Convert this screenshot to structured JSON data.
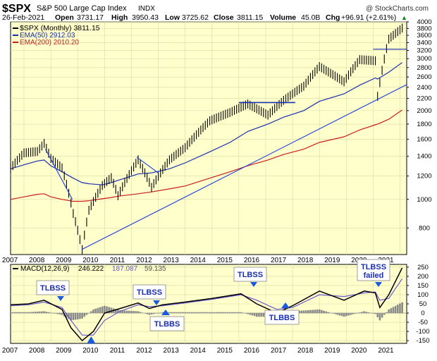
{
  "header": {
    "symbol": "$SPX",
    "name": "S&P 500 Large Cap Index",
    "exchange": "INDX",
    "watermark": "@ StockCharts.com",
    "date": "26-Feb-2021",
    "open_label": "Open",
    "open": "3731.17",
    "high_label": "High",
    "high": "3950.43",
    "low_label": "Low",
    "low": "3725.62",
    "close_label": "Close",
    "close": "3811.15",
    "volume_label": "Volume",
    "volume": "45.0B",
    "chg_label": "Chg",
    "chg": "+96.91 (+2.61%)",
    "chg_arrow": "▲"
  },
  "price_legend": [
    {
      "text": "$SPX (Monthly) 3811.15",
      "color": "#000000"
    },
    {
      "text": "EMA(50) 2912.03",
      "color": "#1a2fb0"
    },
    {
      "text": "EMA(200) 2010.20",
      "color": "#c81e1e"
    }
  ],
  "macd_legend": {
    "label": "MACD(12,26,9)",
    "values": [
      "246.222",
      "187.087",
      "59.135"
    ]
  },
  "colors": {
    "panel_bg": "#ffffcc",
    "price": "#000000",
    "ema50": "#1a2fb0",
    "ema200": "#c81e1e",
    "trendline": "#1a3be0",
    "macd": "#000000",
    "signal": "#6a5acd",
    "hist": "#8a8a8a",
    "annotation": "#1a2fb0",
    "arrow": "#1a5ae0"
  },
  "annotations": [
    {
      "text": "TLBSS",
      "arrow": "down"
    },
    {
      "text": "TLBSS",
      "arrow": "down"
    },
    {
      "text": "TLBBS",
      "arrow": "up"
    },
    {
      "text": "TLBSS",
      "arrow": "down"
    },
    {
      "text": "TLBBS",
      "arrow": "up"
    },
    {
      "text": "TLBSS failed",
      "arrow": "down"
    }
  ],
  "chart_data": [
    {
      "type": "line",
      "title": "$SPX S&P 500 Large Cap Index INDX",
      "x": [
        "2006-07",
        "2007-01",
        "2007-07",
        "2007-10",
        "2008-01",
        "2008-06",
        "2008-11",
        "2009-03",
        "2009-06",
        "2009-12",
        "2010-04",
        "2010-07",
        "2011-04",
        "2011-10",
        "2012-06",
        "2013-01",
        "2013-12",
        "2014-09",
        "2015-05",
        "2016-02",
        "2016-09",
        "2017-06",
        "2018-01",
        "2018-12",
        "2019-07",
        "2020-02",
        "2020-03",
        "2020-08",
        "2021-02"
      ],
      "x_tick_labels": [
        "2007",
        "2008",
        "2009",
        "2010",
        "2011",
        "2012",
        "2013",
        "2014",
        "2015",
        "2016",
        "2017",
        "2018",
        "2019",
        "2020",
        "2021"
      ],
      "y_scale": "log",
      "y_ticks": [
        800,
        1000,
        1200,
        1400,
        1600,
        1800,
        2000,
        2200,
        2400,
        2600,
        2800,
        3000,
        3200,
        3400,
        3600,
        3800,
        4000
      ],
      "ylim": [
        650,
        4000
      ],
      "series": [
        {
          "name": "$SPX (Monthly)",
          "values": [
            1276,
            1438,
            1455,
            1549,
            1378,
            1280,
            896,
            676,
            919,
            1115,
            1186,
            1030,
            1363,
            1099,
            1362,
            1498,
            1848,
            1972,
            2107,
            1932,
            2168,
            2423,
            2823,
            2506,
            2980,
            2954,
            2237,
            3500,
            3811
          ]
        },
        {
          "name": "EMA(50)",
          "values": [
            1270,
            1310,
            1350,
            1360,
            1300,
            1240,
            1180,
            1140,
            1130,
            1120,
            1140,
            1160,
            1220,
            1230,
            1270,
            1330,
            1450,
            1560,
            1700,
            1800,
            1900,
            2000,
            2150,
            2280,
            2440,
            2580,
            2560,
            2700,
            2912
          ]
        },
        {
          "name": "EMA(200)",
          "values": [
            1000,
            1020,
            1040,
            1045,
            1020,
            1000,
            985,
            985,
            990,
            1005,
            1015,
            1025,
            1045,
            1060,
            1085,
            1110,
            1180,
            1240,
            1300,
            1360,
            1420,
            1480,
            1560,
            1630,
            1720,
            1790,
            1800,
            1870,
            2010
          ]
        }
      ]
    },
    {
      "type": "line",
      "title": "MACD(12,26,9) 246.222, 187.087, 59.135",
      "x": [
        "2006-07",
        "2007-03",
        "2007-10",
        "2008-06",
        "2008-10",
        "2009-03",
        "2009-08",
        "2010-01",
        "2010-08",
        "2011-04",
        "2011-09",
        "2012-03",
        "2013-01",
        "2014-01",
        "2015-02",
        "2015-09",
        "2016-06",
        "2017-01",
        "2018-01",
        "2018-12",
        "2019-09",
        "2020-02",
        "2020-04",
        "2020-08",
        "2021-02"
      ],
      "y_ticks": [
        -150,
        -100,
        -50,
        0,
        50,
        100,
        150,
        200,
        250
      ],
      "ylim": [
        -165,
        265
      ],
      "series": [
        {
          "name": "MACD",
          "values": [
            45,
            50,
            70,
            20,
            -80,
            -150,
            -100,
            0,
            25,
            55,
            25,
            45,
            60,
            80,
            105,
            50,
            0,
            40,
            120,
            70,
            120,
            110,
            30,
            100,
            246
          ]
        },
        {
          "name": "Signal",
          "values": [
            40,
            45,
            60,
            30,
            -40,
            -120,
            -120,
            -40,
            10,
            45,
            35,
            40,
            55,
            75,
            100,
            70,
            20,
            30,
            100,
            90,
            110,
            115,
            70,
            80,
            187
          ]
        },
        {
          "name": "Histogram",
          "values": [
            5,
            5,
            10,
            -10,
            -40,
            -30,
            20,
            40,
            15,
            10,
            -10,
            5,
            5,
            5,
            5,
            -20,
            -20,
            10,
            20,
            -20,
            10,
            -5,
            -40,
            20,
            59
          ]
        }
      ]
    }
  ]
}
